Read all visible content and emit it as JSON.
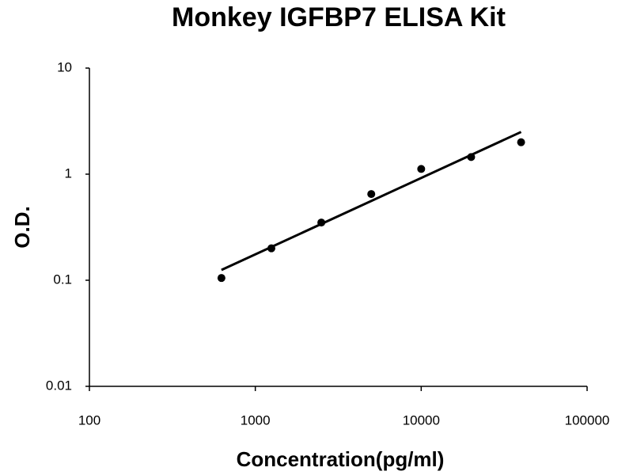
{
  "chart_data": {
    "type": "scatter",
    "title": "Monkey IGFBP7 ELISA Kit",
    "x_label": "Concentration(pg/ml)",
    "y_label": "O.D.",
    "x": [
      625,
      1250,
      2500,
      5000,
      10000,
      20000,
      40000
    ],
    "values": [
      0.105,
      0.2,
      0.35,
      0.65,
      1.12,
      1.45,
      2.0
    ],
    "color": "#000000",
    "trendline": {
      "x": [
        625,
        40000
      ],
      "values": [
        0.125,
        2.5
      ],
      "color": "#000000"
    },
    "xlog": true,
    "ylog": true,
    "xlim": [
      100,
      100000
    ],
    "xticks": [
      100,
      1000,
      10000,
      100000
    ],
    "ylim": [
      0.01,
      10
    ],
    "yticks": [
      0.01,
      0.1,
      1,
      10
    ]
  }
}
